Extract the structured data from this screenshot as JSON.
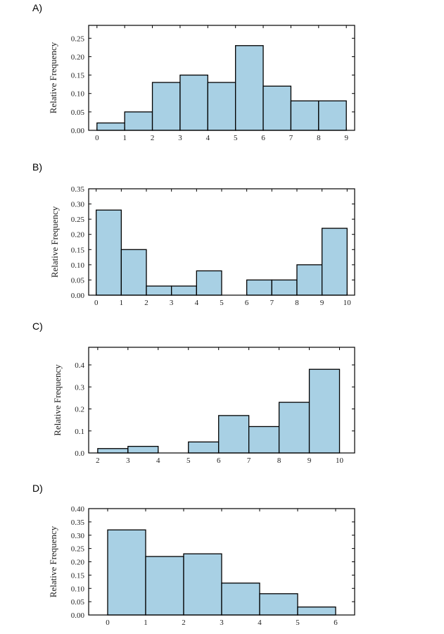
{
  "chart_data": [
    {
      "panel_label": "A)",
      "type": "bar",
      "ylabel": "Relative Frequency",
      "xlabel": "",
      "bin_edges": [
        0,
        1,
        2,
        3,
        4,
        5,
        6,
        7,
        8,
        9
      ],
      "values": [
        0.02,
        0.05,
        0.13,
        0.15,
        0.13,
        0.23,
        0.12,
        0.08,
        0.08
      ],
      "xlim": [
        -0.3,
        9.3
      ],
      "ylim": [
        0,
        0.285
      ],
      "xticks": [
        "0",
        "1",
        "2",
        "3",
        "4",
        "5",
        "6",
        "7",
        "8",
        "9"
      ],
      "yticks": [
        "0.00",
        "0.05",
        "0.10",
        "0.15",
        "0.20",
        "0.25"
      ],
      "bar_color": "#a8d0e4",
      "edge_color": "#000000"
    },
    {
      "panel_label": "B)",
      "type": "bar",
      "ylabel": "Relative Frequency",
      "xlabel": "",
      "bin_edges": [
        0,
        1,
        2,
        3,
        4,
        5,
        6,
        7,
        8,
        9,
        10
      ],
      "values": [
        0.28,
        0.15,
        0.03,
        0.03,
        0.08,
        0.0,
        0.05,
        0.05,
        0.1,
        0.22
      ],
      "xlim": [
        -0.3,
        10.3
      ],
      "ylim": [
        0,
        0.35
      ],
      "xticks": [
        "0",
        "1",
        "2",
        "3",
        "4",
        "5",
        "6",
        "7",
        "8",
        "9",
        "10"
      ],
      "yticks": [
        "0.00",
        "0.05",
        "0.10",
        "0.15",
        "0.20",
        "0.25",
        "0.30",
        "0.35"
      ],
      "bar_color": "#a8d0e4",
      "edge_color": "#000000"
    },
    {
      "panel_label": "C)",
      "type": "bar",
      "ylabel": "Relative Frequency",
      "xlabel": "",
      "bin_edges": [
        2,
        3,
        4,
        5,
        6,
        7,
        8,
        9,
        10
      ],
      "values": [
        0.02,
        0.03,
        0.0,
        0.05,
        0.17,
        0.12,
        0.23,
        0.38
      ],
      "xlim": [
        1.7,
        10.5
      ],
      "ylim": [
        0,
        0.48
      ],
      "xticks": [
        "2",
        "3",
        "4",
        "5",
        "6",
        "7",
        "8",
        "9",
        "10"
      ],
      "yticks": [
        "0.0",
        "0.1",
        "0.2",
        "0.3",
        "0.4"
      ],
      "bar_color": "#a8d0e4",
      "edge_color": "#000000"
    },
    {
      "panel_label": "D)",
      "type": "bar",
      "ylabel": "Relative Frequency",
      "xlabel": "",
      "bin_edges": [
        0,
        1,
        2,
        3,
        4,
        5,
        6
      ],
      "values": [
        0.32,
        0.22,
        0.23,
        0.12,
        0.08,
        0.03
      ],
      "xlim": [
        -0.5,
        6.5
      ],
      "ylim": [
        0,
        0.4
      ],
      "xticks": [
        "0",
        "1",
        "2",
        "3",
        "4",
        "5",
        "6"
      ],
      "yticks": [
        "0.00",
        "0.05",
        "0.10",
        "0.15",
        "0.20",
        "0.25",
        "0.30",
        "0.35",
        "0.40"
      ],
      "bar_color": "#a8d0e4",
      "edge_color": "#000000"
    }
  ]
}
